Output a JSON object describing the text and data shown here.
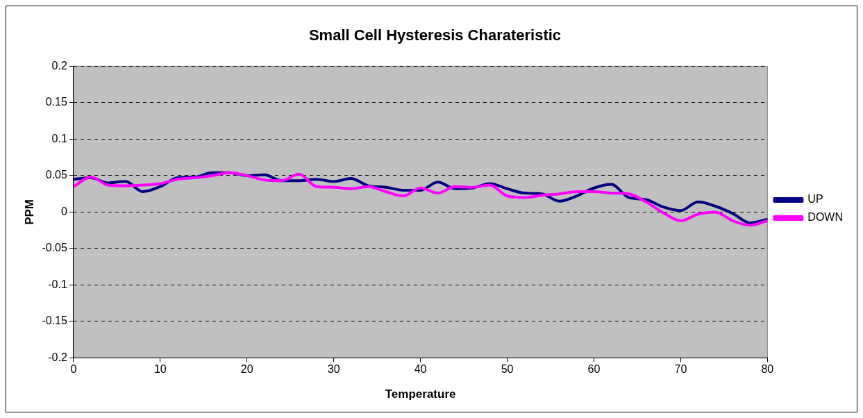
{
  "chart_data": {
    "type": "line",
    "title": "Small Cell Hysteresis Charateristic",
    "xlabel": "Temperature",
    "ylabel": "PPM",
    "x": [
      0,
      2,
      4,
      6,
      8,
      10,
      12,
      14,
      16,
      18,
      20,
      22,
      24,
      26,
      28,
      30,
      32,
      34,
      36,
      38,
      40,
      42,
      44,
      46,
      48,
      50,
      52,
      54,
      56,
      58,
      60,
      62,
      64,
      66,
      68,
      70,
      72,
      74,
      76,
      78,
      80
    ],
    "series": [
      {
        "name": "UP",
        "color": "#000080",
        "values": [
          0.045,
          0.047,
          0.04,
          0.042,
          0.028,
          0.035,
          0.047,
          0.048,
          0.054,
          0.054,
          0.05,
          0.051,
          0.043,
          0.043,
          0.045,
          0.042,
          0.046,
          0.036,
          0.034,
          0.03,
          0.03,
          0.041,
          0.032,
          0.033,
          0.039,
          0.032,
          0.026,
          0.025,
          0.015,
          0.022,
          0.033,
          0.038,
          0.02,
          0.017,
          0.007,
          0.002,
          0.014,
          0.008,
          -0.002,
          -0.015,
          -0.01
        ]
      },
      {
        "name": "DOWN",
        "color": "#ff00ff",
        "values": [
          0.035,
          0.048,
          0.037,
          0.036,
          0.037,
          0.039,
          0.045,
          0.047,
          0.05,
          0.054,
          0.05,
          0.044,
          0.043,
          0.052,
          0.035,
          0.034,
          0.032,
          0.035,
          0.028,
          0.022,
          0.033,
          0.026,
          0.035,
          0.034,
          0.037,
          0.022,
          0.02,
          0.023,
          0.025,
          0.028,
          0.028,
          0.026,
          0.025,
          0.014,
          -0.001,
          -0.012,
          -0.003,
          0.0,
          -0.012,
          -0.018,
          -0.012
        ]
      }
    ],
    "xlim": [
      0,
      80
    ],
    "xticks": [
      0,
      10,
      20,
      30,
      40,
      50,
      60,
      70,
      80
    ],
    "ylim": [
      -0.2,
      0.2
    ],
    "yticks": [
      -0.2,
      -0.15,
      -0.1,
      -0.05,
      0,
      0.05,
      0.1,
      0.15,
      0.2
    ],
    "grid": "y",
    "legend": "right",
    "marker": "none",
    "line_style": "solid"
  }
}
